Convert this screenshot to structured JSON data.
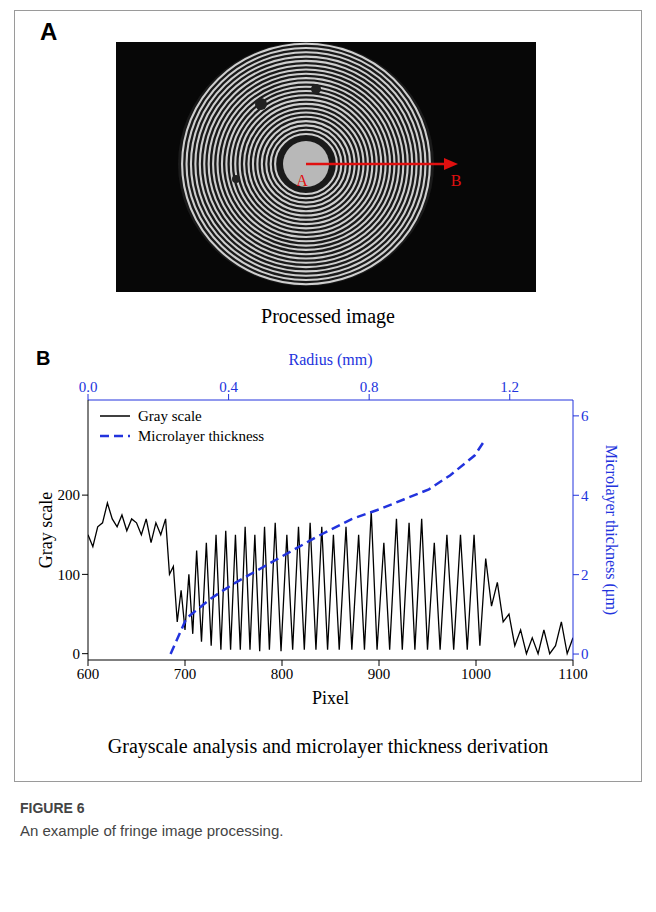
{
  "panel_a": {
    "letter": "A",
    "points": [
      "A",
      "B"
    ],
    "caption": "Processed image"
  },
  "panel_b": {
    "letter": "B",
    "caption": "Grayscale analysis and microlayer thickness derivation"
  },
  "figure": {
    "label": "FIGURE 6",
    "caption": "An example of fringe image processing."
  },
  "chart_data": {
    "type": "line",
    "x_label": "Pixel",
    "x2_label": "Radius (mm)",
    "y_label": "Gray scale",
    "y2_label": "Microlayer thickness (μm)",
    "xlim": [
      600,
      1100
    ],
    "xticks": [
      600,
      700,
      800,
      900,
      1000,
      1100
    ],
    "x2lim": [
      0,
      1.38
    ],
    "x2ticks": [
      {
        "value": 0,
        "label": "0.0"
      },
      0.4,
      0.8,
      1.2
    ],
    "ylim": [
      -8,
      320
    ],
    "yticks": [
      0,
      100,
      200
    ],
    "y2lim": [
      -0.15,
      6.4
    ],
    "y2ticks": [
      0,
      2,
      4,
      6
    ],
    "legend": "upper left",
    "series": [
      {
        "name": "Gray scale",
        "color": "#000000",
        "line_style": "solid",
        "x": [
          600,
          605,
          610,
          615,
          620,
          625,
          630,
          635,
          640,
          645,
          650,
          655,
          660,
          665,
          670,
          675,
          680,
          684,
          688,
          692,
          696,
          700,
          704,
          708,
          712,
          717,
          722,
          727,
          732,
          737,
          742,
          747,
          752,
          757,
          762,
          767,
          772,
          777,
          782,
          787,
          793,
          799,
          805,
          811,
          817,
          823,
          829,
          835,
          841,
          847,
          853,
          859,
          866,
          872,
          879,
          885,
          892,
          898,
          905,
          911,
          918,
          924,
          931,
          937,
          944,
          950,
          957,
          963,
          970,
          977,
          984,
          991,
          998,
          1004,
          1010,
          1016,
          1022,
          1028,
          1034,
          1040,
          1046,
          1052,
          1058,
          1064,
          1070,
          1076,
          1082,
          1088,
          1094,
          1100
        ],
        "values": [
          150,
          135,
          160,
          165,
          190,
          170,
          160,
          175,
          155,
          170,
          165,
          150,
          170,
          140,
          165,
          150,
          170,
          100,
          110,
          40,
          80,
          30,
          100,
          25,
          130,
          15,
          140,
          10,
          150,
          5,
          155,
          5,
          150,
          5,
          160,
          5,
          150,
          3,
          160,
          5,
          165,
          3,
          150,
          5,
          160,
          5,
          165,
          5,
          160,
          5,
          150,
          5,
          160,
          5,
          150,
          5,
          180,
          5,
          140,
          5,
          170,
          5,
          165,
          5,
          170,
          5,
          140,
          5,
          150,
          5,
          150,
          5,
          150,
          10,
          120,
          60,
          90,
          40,
          50,
          10,
          30,
          0,
          20,
          0,
          30,
          0,
          10,
          40,
          0,
          20
        ]
      },
      {
        "name": "Microlayer thickness",
        "color": "#2233dd",
        "line_style": "dashed",
        "axis": "y2",
        "x": [
          0.235,
          0.28,
          0.35,
          0.41,
          0.5,
          0.55,
          0.65,
          0.75,
          0.83,
          0.9,
          0.97,
          1.03,
          1.1,
          1.13
        ],
        "values": [
          0,
          0.9,
          1.4,
          1.75,
          2.2,
          2.45,
          2.95,
          3.4,
          3.65,
          3.9,
          4.15,
          4.5,
          5.0,
          5.4
        ]
      }
    ]
  }
}
